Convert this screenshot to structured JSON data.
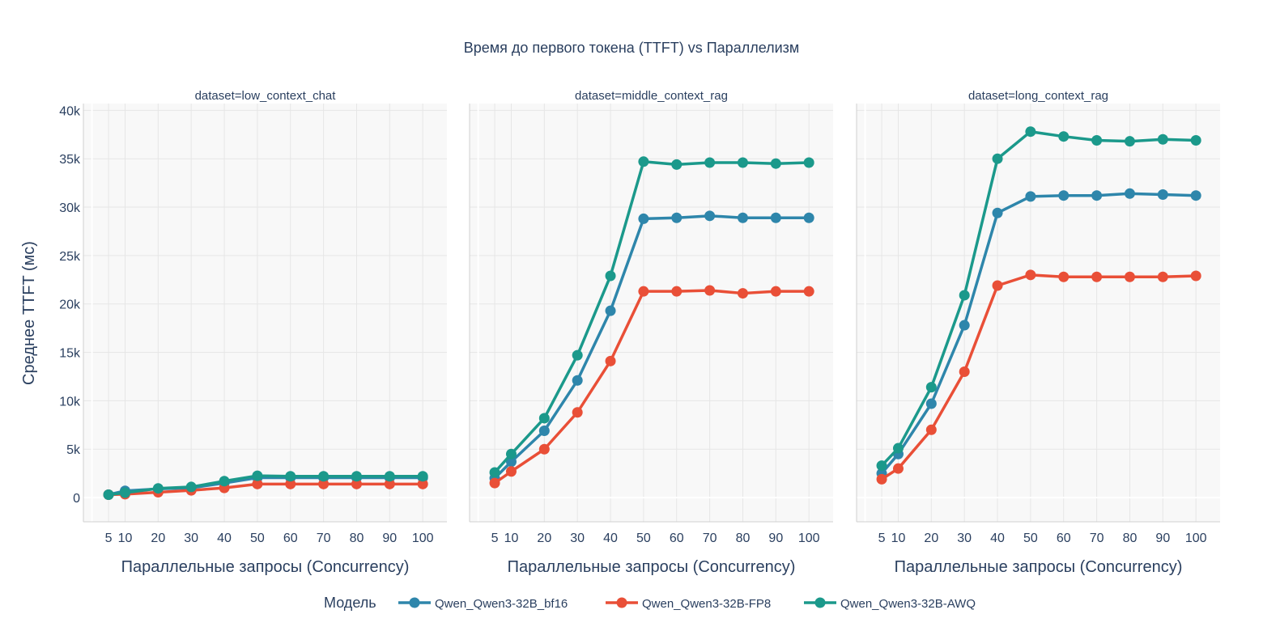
{
  "chart_data": {
    "type": "line",
    "title": "Время до первого токена (TTFT) vs Параллелизм",
    "ylabel": "Среднее TTFT (мс)",
    "xlabel": "Параллельные запросы (Concurrency)",
    "x": [
      5,
      10,
      20,
      30,
      40,
      50,
      60,
      70,
      80,
      90,
      100
    ],
    "x_ticks": [
      "5",
      "10",
      "20",
      "30",
      "40",
      "50",
      "60",
      "70",
      "80",
      "90",
      "100"
    ],
    "y_ticks": [
      {
        "value": 0,
        "label": "0"
      },
      {
        "value": 5000,
        "label": "5k"
      },
      {
        "value": 10000,
        "label": "10k"
      },
      {
        "value": 15000,
        "label": "15k"
      },
      {
        "value": 20000,
        "label": "20k"
      },
      {
        "value": 25000,
        "label": "25k"
      },
      {
        "value": 30000,
        "label": "30k"
      },
      {
        "value": 35000,
        "label": "35k"
      },
      {
        "value": 40000,
        "label": "40k"
      }
    ],
    "ylim": [
      -2500,
      40700
    ],
    "xlim": [
      -2.6,
      107.3
    ],
    "grid": true,
    "legend": {
      "title": "Модель",
      "position": "bottom"
    },
    "series_meta": [
      {
        "name": "Qwen_Qwen3-32B_bf16",
        "color": "#2E86AB"
      },
      {
        "name": "Qwen_Qwen3-32B-FP8",
        "color": "#E94F37"
      },
      {
        "name": "Qwen_Qwen3-32B-AWQ",
        "color": "#1B998B"
      }
    ],
    "panels": [
      {
        "title": "dataset=low_context_chat",
        "series": [
          {
            "name": "Qwen_Qwen3-32B_bf16",
            "values": [
              300,
              700,
              900,
              1000,
              1500,
              2050,
              2050,
              2050,
              2050,
              2050,
              2050
            ]
          },
          {
            "name": "Qwen_Qwen3-32B-FP8",
            "values": [
              300,
              350,
              550,
              750,
              1000,
              1400,
              1400,
              1400,
              1400,
              1400,
              1400
            ]
          },
          {
            "name": "Qwen_Qwen3-32B-AWQ",
            "values": [
              300,
              500,
              950,
              1100,
              1700,
              2250,
              2200,
              2200,
              2200,
              2200,
              2200
            ]
          }
        ]
      },
      {
        "title": "dataset=middle_context_rag",
        "series": [
          {
            "name": "Qwen_Qwen3-32B_bf16",
            "values": [
              2000,
              3700,
              6900,
              12100,
              19300,
              28800,
              28900,
              29100,
              28900,
              28900,
              28900
            ]
          },
          {
            "name": "Qwen_Qwen3-32B-FP8",
            "values": [
              1500,
              2700,
              5000,
              8800,
              14100,
              21300,
              21300,
              21400,
              21100,
              21300,
              21300
            ]
          },
          {
            "name": "Qwen_Qwen3-32B-AWQ",
            "values": [
              2600,
              4500,
              8200,
              14700,
              22900,
              34700,
              34400,
              34600,
              34600,
              34500,
              34600
            ]
          }
        ]
      },
      {
        "title": "dataset=long_context_rag",
        "series": [
          {
            "name": "Qwen_Qwen3-32B_bf16",
            "values": [
              2500,
              4500,
              9700,
              17800,
              29400,
              31100,
              31200,
              31200,
              31400,
              31300,
              31200
            ]
          },
          {
            "name": "Qwen_Qwen3-32B-FP8",
            "values": [
              1900,
              3000,
              7000,
              13000,
              21900,
              23000,
              22800,
              22800,
              22800,
              22800,
              22900
            ]
          },
          {
            "name": "Qwen_Qwen3-32B-AWQ",
            "values": [
              3300,
              5100,
              11400,
              20900,
              35000,
              37800,
              37300,
              36900,
              36800,
              37000,
              36900
            ]
          }
        ]
      }
    ]
  }
}
